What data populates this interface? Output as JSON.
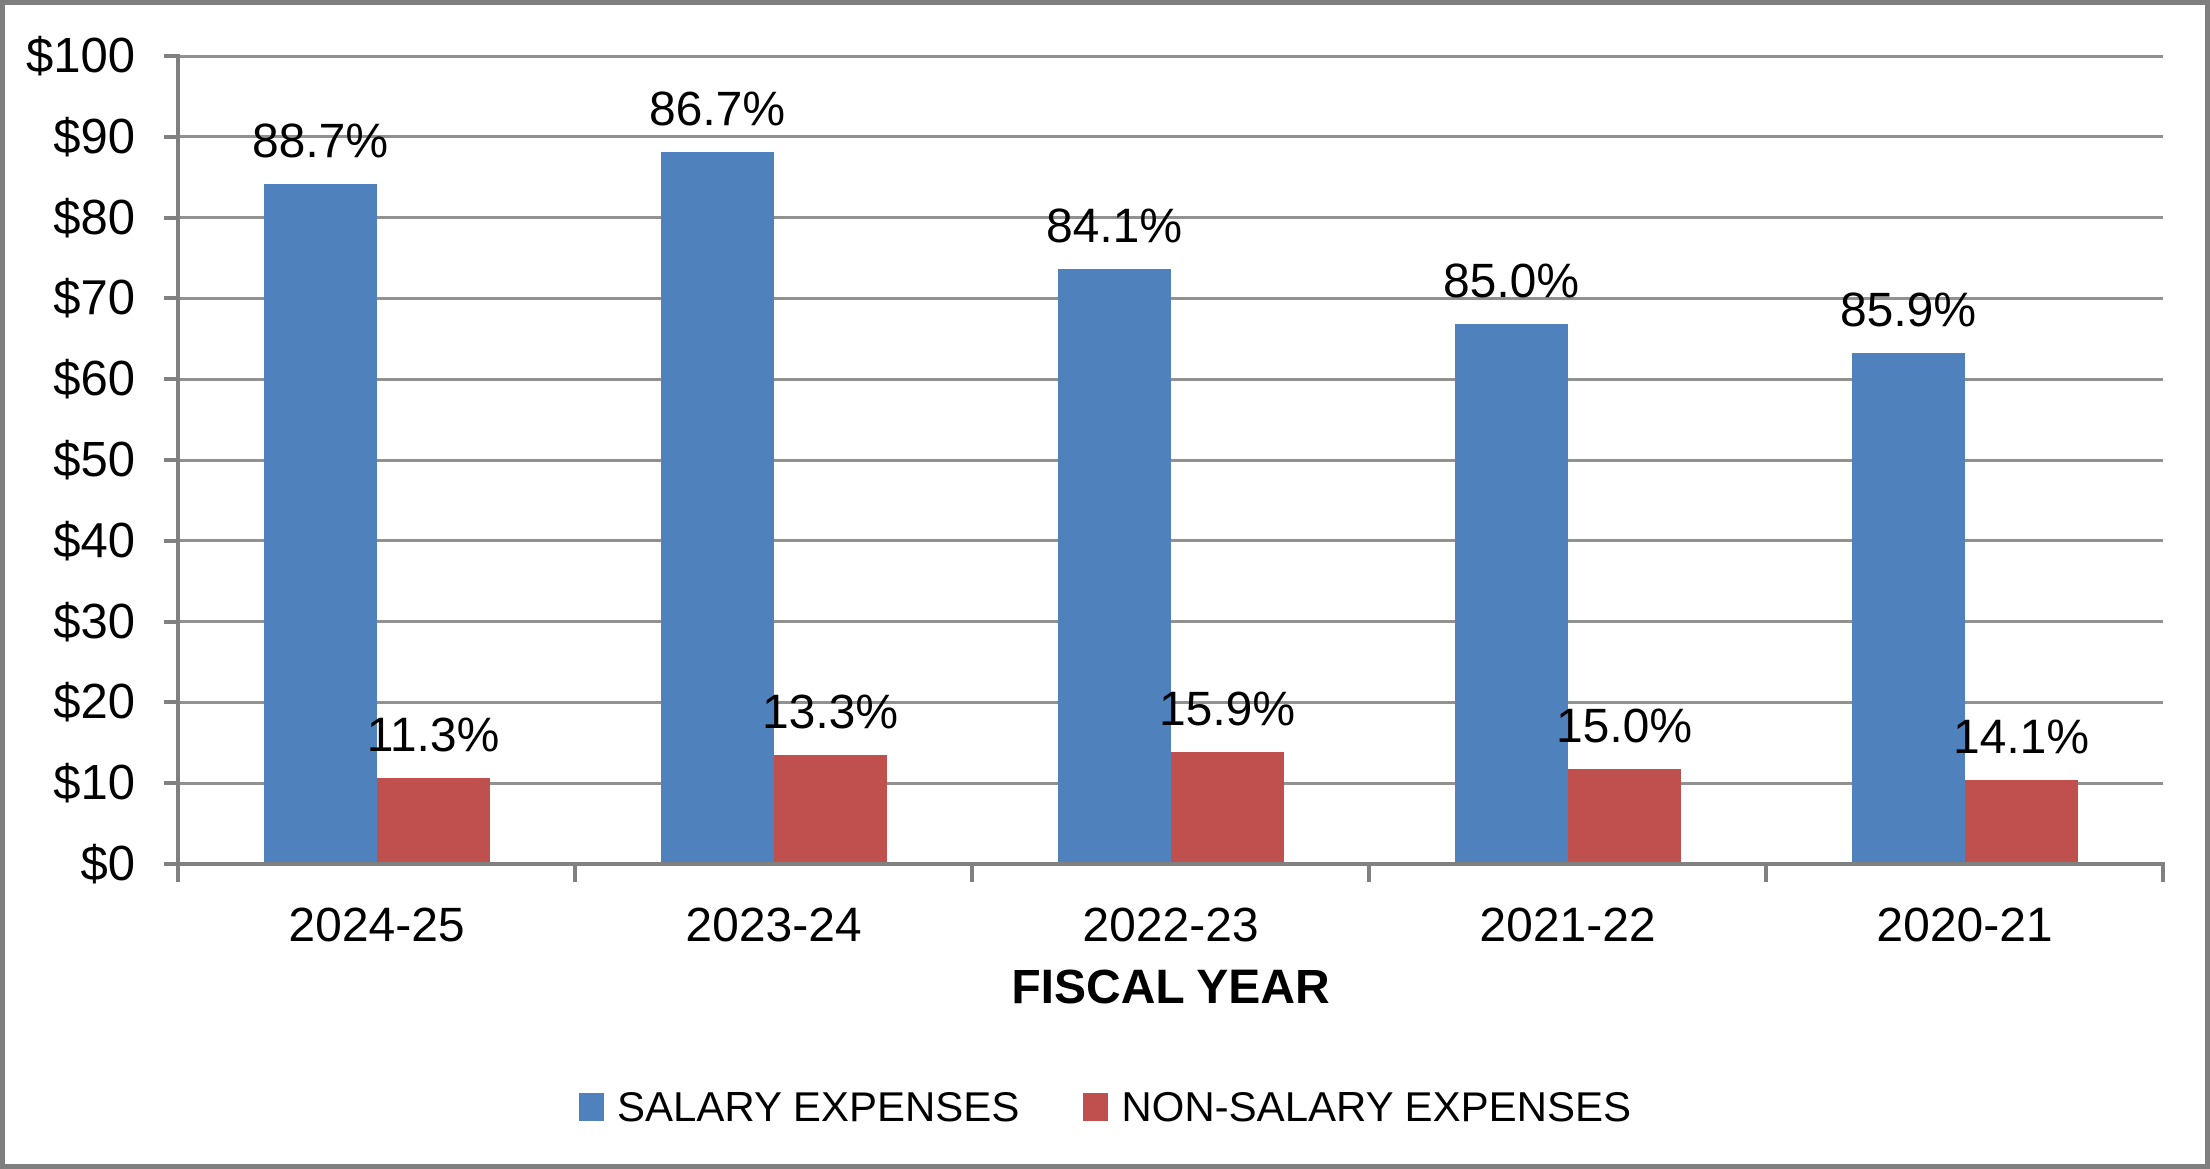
{
  "chart_data": {
    "type": "bar",
    "title": "",
    "xlabel": "FISCAL YEAR",
    "ylabel": "",
    "categories": [
      "2024-25",
      "2023-24",
      "2022-23",
      "2021-22",
      "2020-21"
    ],
    "series": [
      {
        "name": "SALARY EXPENSES",
        "color": "#4F81BD",
        "values": [
          84.2,
          88.1,
          73.7,
          66.8,
          63.2
        ],
        "data_labels": [
          "88.7%",
          "86.7%",
          "84.1%",
          "85.0%",
          "85.9%"
        ]
      },
      {
        "name": "NON-SALARY EXPENSES",
        "color": "#C0504D",
        "values": [
          10.7,
          13.5,
          13.9,
          11.8,
          10.4
        ],
        "data_labels": [
          "11.3%",
          "13.3%",
          "15.9%",
          "15.0%",
          "14.1%"
        ]
      }
    ],
    "y_axis": {
      "min": 0,
      "max": 100,
      "step": 10,
      "tick_labels": [
        "$0",
        "$10",
        "$20",
        "$30",
        "$40",
        "$50",
        "$60",
        "$70",
        "$80",
        "$90",
        "$100"
      ]
    },
    "grid": true,
    "legend_position": "bottom"
  }
}
